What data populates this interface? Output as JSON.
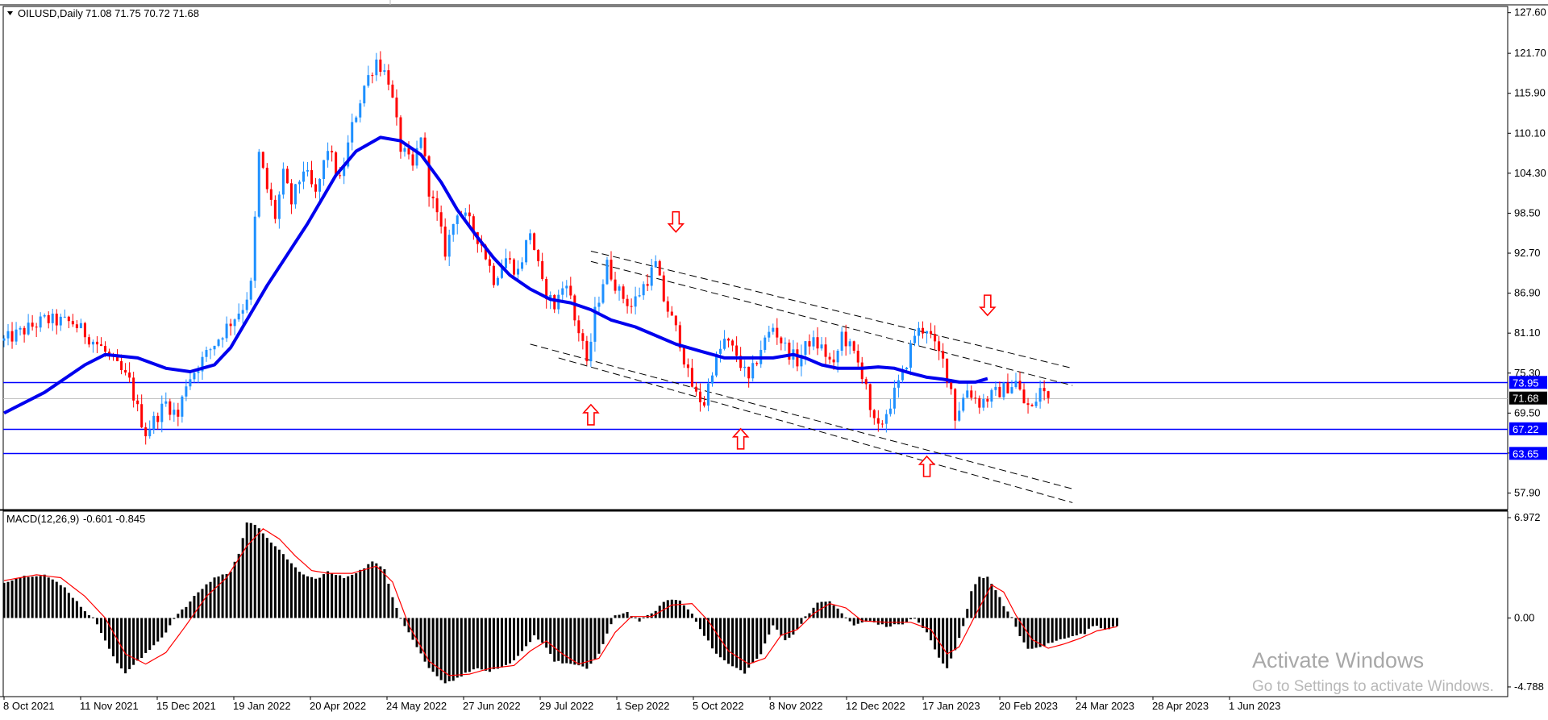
{
  "main_header": {
    "symbol": "OILUSD,Daily",
    "ohlc": "71.08 71.75 70.72 71.68"
  },
  "macd_header": {
    "label": "MACD(12,26,9)",
    "values": "-0.601 -0.845"
  },
  "watermark": {
    "title": "Activate Windows",
    "subtitle": "Go to Settings to activate Windows."
  },
  "colors": {
    "background": "#ffffff",
    "bull": "#1e90ff",
    "bear": "#ff0000",
    "ma": "#0000ee",
    "support": "#0000ff",
    "arrow": "#ff0000",
    "channel": "#000000",
    "macd_hist": "#000000",
    "macd_signal": "#ff0000"
  },
  "icons": {
    "up_arrow": "up-arrow-icon",
    "down_arrow": "down-arrow-icon",
    "menu": "triangle-down-icon"
  },
  "chart_data": [
    {
      "type": "candlestick",
      "title": "OILUSD,Daily",
      "current_price": "71.68",
      "y_ticks": [
        "127.60",
        "121.70",
        "115.90",
        "110.10",
        "104.30",
        "98.50",
        "92.70",
        "86.90",
        "81.10",
        "75.30",
        "69.50",
        "63.70",
        "57.90"
      ],
      "x_ticks": [
        "8 Oct 2021",
        "11 Nov 2021",
        "15 Dec 2021",
        "19 Jan 2022",
        "20 Apr 2022",
        "24 May 2022",
        "27 Jun 2022",
        "29 Jul 2022",
        "1 Sep 2022",
        "5 Oct 2022",
        "8 Nov 2022",
        "12 Dec 2022",
        "17 Jan 2023",
        "20 Feb 2023",
        "24 Mar 2023",
        "28 Apr 2023",
        "1 Jun 2023"
      ],
      "ylim": [
        55.5,
        128.5
      ],
      "grid": false,
      "price_path": [
        [
          0,
          80
        ],
        [
          10,
          83
        ],
        [
          17,
          82.6
        ],
        [
          24,
          79
        ],
        [
          31,
          74
        ],
        [
          33,
          70
        ],
        [
          35,
          66.7
        ],
        [
          40,
          71
        ],
        [
          43,
          69
        ],
        [
          45,
          74
        ],
        [
          50,
          78
        ],
        [
          55,
          82
        ],
        [
          59,
          85
        ],
        [
          61,
          88
        ],
        [
          63,
          107
        ],
        [
          65,
          102
        ],
        [
          67,
          98
        ],
        [
          69,
          104
        ],
        [
          71,
          100
        ],
        [
          74,
          105
        ],
        [
          77,
          101
        ],
        [
          80,
          108
        ],
        [
          83,
          103
        ],
        [
          86,
          111
        ],
        [
          89,
          117
        ],
        [
          92,
          120.8
        ],
        [
          95,
          118
        ],
        [
          98,
          108
        ],
        [
          101,
          105
        ],
        [
          103,
          110
        ],
        [
          105,
          102
        ],
        [
          107,
          98
        ],
        [
          109,
          93
        ],
        [
          112,
          99
        ],
        [
          115,
          97
        ],
        [
          118,
          94
        ],
        [
          121,
          89
        ],
        [
          124,
          92
        ],
        [
          127,
          90
        ],
        [
          130,
          96
        ],
        [
          133,
          88
        ],
        [
          136,
          85
        ],
        [
          139,
          89
        ],
        [
          141,
          83
        ],
        [
          143,
          80
        ],
        [
          144,
          76
        ],
        [
          146,
          84
        ],
        [
          149,
          91
        ],
        [
          152,
          87
        ],
        [
          155,
          85
        ],
        [
          158,
          88
        ],
        [
          161,
          91
        ],
        [
          163,
          86
        ],
        [
          165,
          83
        ],
        [
          167,
          80
        ],
        [
          169,
          75
        ],
        [
          171,
          72
        ],
        [
          173,
          71
        ],
        [
          175,
          76
        ],
        [
          178,
          80
        ],
        [
          181,
          78
        ],
        [
          184,
          74
        ],
        [
          187,
          79
        ],
        [
          190,
          82
        ],
        [
          193,
          79
        ],
        [
          196,
          77
        ],
        [
          199,
          80
        ],
        [
          202,
          79
        ],
        [
          205,
          76
        ],
        [
          207,
          81
        ],
        [
          210,
          78
        ],
        [
          213,
          74
        ],
        [
          214,
          69
        ],
        [
          216,
          67
        ],
        [
          219,
          71
        ],
        [
          222,
          75
        ],
        [
          225,
          81
        ],
        [
          228,
          82
        ],
        [
          230,
          79
        ],
        [
          232,
          77
        ],
        [
          234,
          73
        ],
        [
          235,
          69
        ],
        [
          238,
          73
        ],
        [
          241,
          71
        ],
        [
          244,
          72
        ],
        [
          247,
          73
        ],
        [
          250,
          74
        ],
        [
          252,
          71
        ],
        [
          254,
          70
        ],
        [
          256,
          73
        ],
        [
          258,
          71.68
        ]
      ],
      "moving_average": {
        "points": [
          [
            0,
            69.5
          ],
          [
            10,
            72.5
          ],
          [
            20,
            76.5
          ],
          [
            25,
            78
          ],
          [
            33,
            77.5
          ],
          [
            40,
            76
          ],
          [
            46,
            75.5
          ],
          [
            52,
            76.5
          ],
          [
            56,
            79
          ],
          [
            60,
            83
          ],
          [
            65,
            88
          ],
          [
            75,
            97
          ],
          [
            82,
            104
          ],
          [
            87,
            107.5
          ],
          [
            93,
            109.5
          ],
          [
            98,
            109
          ],
          [
            103,
            107
          ],
          [
            108,
            103
          ],
          [
            112,
            99
          ],
          [
            117,
            95
          ],
          [
            121,
            92
          ],
          [
            125,
            89.5
          ],
          [
            130,
            87.5
          ],
          [
            135,
            86
          ],
          [
            140,
            85.5
          ],
          [
            145,
            84.5
          ],
          [
            150,
            83
          ],
          [
            156,
            82
          ],
          [
            160,
            81
          ],
          [
            166,
            79.5
          ],
          [
            172,
            78.5
          ],
          [
            178,
            77.5
          ],
          [
            184,
            77.5
          ],
          [
            190,
            77.5
          ],
          [
            195,
            78
          ],
          [
            198,
            77.5
          ],
          [
            202,
            76.5
          ],
          [
            206,
            76
          ],
          [
            212,
            76
          ],
          [
            216,
            76.2
          ],
          [
            220,
            76
          ],
          [
            224,
            75.3
          ],
          [
            228,
            74.7
          ],
          [
            232,
            74.4
          ],
          [
            236,
            74
          ],
          [
            240,
            74
          ],
          [
            243,
            74.5
          ]
        ]
      },
      "horizontal_levels": [
        {
          "label": "73.95",
          "value": 73.95,
          "color": "#0000ff"
        },
        {
          "label": "71.68",
          "value": 71.68,
          "color": "#000000"
        },
        {
          "label": "67.22",
          "value": 67.22,
          "color": "#0000ff"
        },
        {
          "label": "63.65",
          "value": 63.65,
          "color": "#0000ff"
        }
      ],
      "channel_lines": [
        {
          "from": [
            145,
            93
          ],
          "to": [
            264,
            76
          ]
        },
        {
          "from": [
            145,
            91.5
          ],
          "to": [
            264,
            73.5
          ]
        },
        {
          "from": [
            130,
            79.5
          ],
          "to": [
            264,
            58.5
          ]
        },
        {
          "from": [
            137,
            77.5
          ],
          "to": [
            264,
            56.5
          ]
        }
      ],
      "markers": [
        {
          "direction": "up",
          "x": 145,
          "y": 69.2
        },
        {
          "direction": "down",
          "x": 166,
          "y": 97.3
        },
        {
          "direction": "up",
          "x": 182,
          "y": 65.7
        },
        {
          "direction": "up",
          "x": 228,
          "y": 61.7
        },
        {
          "direction": "down",
          "x": 243,
          "y": 85.2
        }
      ]
    },
    {
      "type": "bar",
      "title": "MACD(12,26,9)",
      "y_ticks": [
        "6.972",
        "0.00",
        "-4.788"
      ],
      "ylim": [
        -4.79,
        6.972
      ],
      "histogram_path": [
        [
          0,
          2.5
        ],
        [
          5,
          2.9
        ],
        [
          10,
          3.0
        ],
        [
          15,
          2.1
        ],
        [
          20,
          0.5
        ],
        [
          22,
          0
        ],
        [
          25,
          -1.5
        ],
        [
          28,
          -3.2
        ],
        [
          30,
          -3.8
        ],
        [
          35,
          -2.5
        ],
        [
          40,
          -1.0
        ],
        [
          42,
          0
        ],
        [
          45,
          0.8
        ],
        [
          48,
          1.8
        ],
        [
          52,
          2.8
        ],
        [
          56,
          3.2
        ],
        [
          58,
          4.5
        ],
        [
          60,
          6.7
        ],
        [
          62,
          6.5
        ],
        [
          65,
          5.5
        ],
        [
          68,
          4.8
        ],
        [
          70,
          4.0
        ],
        [
          74,
          3.0
        ],
        [
          77,
          2.7
        ],
        [
          80,
          3.2
        ],
        [
          84,
          2.8
        ],
        [
          88,
          3.3
        ],
        [
          91,
          3.9
        ],
        [
          94,
          3.4
        ],
        [
          96,
          1.5
        ],
        [
          98,
          0
        ],
        [
          102,
          -2
        ],
        [
          105,
          -3.5
        ],
        [
          109,
          -4.5
        ],
        [
          112,
          -4.2
        ],
        [
          116,
          -3.5
        ],
        [
          120,
          -3.7
        ],
        [
          123,
          -3.5
        ],
        [
          126,
          -3.0
        ],
        [
          129,
          -2.0
        ],
        [
          131,
          -1.2
        ],
        [
          134,
          -2.0
        ],
        [
          136,
          -3.0
        ],
        [
          140,
          -3.2
        ],
        [
          144,
          -3.5
        ],
        [
          147,
          -2.5
        ],
        [
          151,
          0.2
        ],
        [
          154,
          0.4
        ],
        [
          157,
          -0.2
        ],
        [
          160,
          0.3
        ],
        [
          164,
          1.3
        ],
        [
          167,
          1.2
        ],
        [
          170,
          0.3
        ],
        [
          173,
          -1.2
        ],
        [
          176,
          -2.5
        ],
        [
          179,
          -3.2
        ],
        [
          183,
          -3.8
        ],
        [
          187,
          -2.5
        ],
        [
          190,
          -0.5
        ],
        [
          193,
          -1.5
        ],
        [
          195,
          -1.2
        ],
        [
          198,
          0.1
        ],
        [
          201,
          1.0
        ],
        [
          204,
          1.2
        ],
        [
          207,
          0.3
        ],
        [
          210,
          -0.5
        ],
        [
          214,
          -0.2
        ],
        [
          218,
          -0.6
        ],
        [
          222,
          -0.4
        ],
        [
          225,
          0
        ],
        [
          228,
          -1.0
        ],
        [
          231,
          -2.8
        ],
        [
          233,
          -3.5
        ],
        [
          235,
          -2.2
        ],
        [
          237,
          -0.5
        ],
        [
          239,
          1.8
        ],
        [
          241,
          2.9
        ],
        [
          243,
          2.8
        ],
        [
          245,
          2.0
        ],
        [
          247,
          0.8
        ],
        [
          249,
          0
        ],
        [
          251,
          -1.2
        ],
        [
          253,
          -2.2
        ],
        [
          255,
          -2.1
        ],
        [
          258,
          -1.8
        ],
        [
          261,
          -1.5
        ],
        [
          264,
          -1.2
        ],
        [
          267,
          -1.1
        ],
        [
          269,
          -0.5
        ],
        [
          272,
          -0.8
        ],
        [
          275,
          -0.5
        ]
      ],
      "signal_path": [
        [
          0,
          2.6
        ],
        [
          8,
          3.0
        ],
        [
          14,
          2.8
        ],
        [
          20,
          1.5
        ],
        [
          25,
          0
        ],
        [
          30,
          -2.5
        ],
        [
          35,
          -3.2
        ],
        [
          40,
          -2.4
        ],
        [
          45,
          -0.5
        ],
        [
          50,
          1.5
        ],
        [
          55,
          2.8
        ],
        [
          60,
          5.0
        ],
        [
          64,
          6.2
        ],
        [
          68,
          5.5
        ],
        [
          72,
          4.3
        ],
        [
          76,
          3.3
        ],
        [
          80,
          3.1
        ],
        [
          86,
          3.1
        ],
        [
          92,
          3.6
        ],
        [
          96,
          2.5
        ],
        [
          100,
          -0.5
        ],
        [
          105,
          -3.0
        ],
        [
          110,
          -4.0
        ],
        [
          115,
          -3.9
        ],
        [
          120,
          -3.5
        ],
        [
          126,
          -3.3
        ],
        [
          130,
          -2.3
        ],
        [
          134,
          -1.6
        ],
        [
          138,
          -2.5
        ],
        [
          142,
          -3.2
        ],
        [
          147,
          -2.8
        ],
        [
          151,
          -1.0
        ],
        [
          155,
          0.1
        ],
        [
          160,
          0.1
        ],
        [
          165,
          0.9
        ],
        [
          170,
          1.0
        ],
        [
          174,
          -0.2
        ],
        [
          179,
          -2.3
        ],
        [
          184,
          -3.2
        ],
        [
          188,
          -2.8
        ],
        [
          192,
          -1.2
        ],
        [
          196,
          -0.8
        ],
        [
          200,
          0.3
        ],
        [
          204,
          1.0
        ],
        [
          208,
          0.7
        ],
        [
          212,
          -0.2
        ],
        [
          218,
          -0.3
        ],
        [
          224,
          -0.3
        ],
        [
          229,
          -0.8
        ],
        [
          233,
          -2.5
        ],
        [
          236,
          -2.0
        ],
        [
          240,
          0.2
        ],
        [
          244,
          2.3
        ],
        [
          247,
          1.8
        ],
        [
          250,
          0.2
        ],
        [
          254,
          -1.5
        ],
        [
          258,
          -2.1
        ],
        [
          262,
          -1.8
        ],
        [
          266,
          -1.4
        ],
        [
          270,
          -0.9
        ],
        [
          275,
          -0.6
        ]
      ]
    }
  ]
}
